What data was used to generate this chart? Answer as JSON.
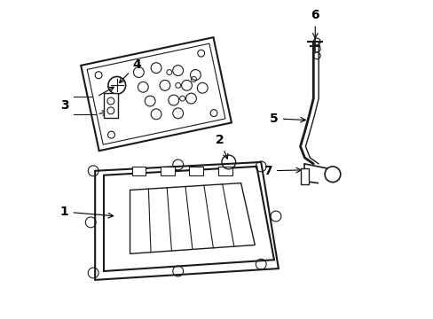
{
  "bg_color": "#ffffff",
  "line_color": "#1a1a1a",
  "fig_width": 4.89,
  "fig_height": 3.6,
  "dpi": 100,
  "label_fontsize": 10
}
